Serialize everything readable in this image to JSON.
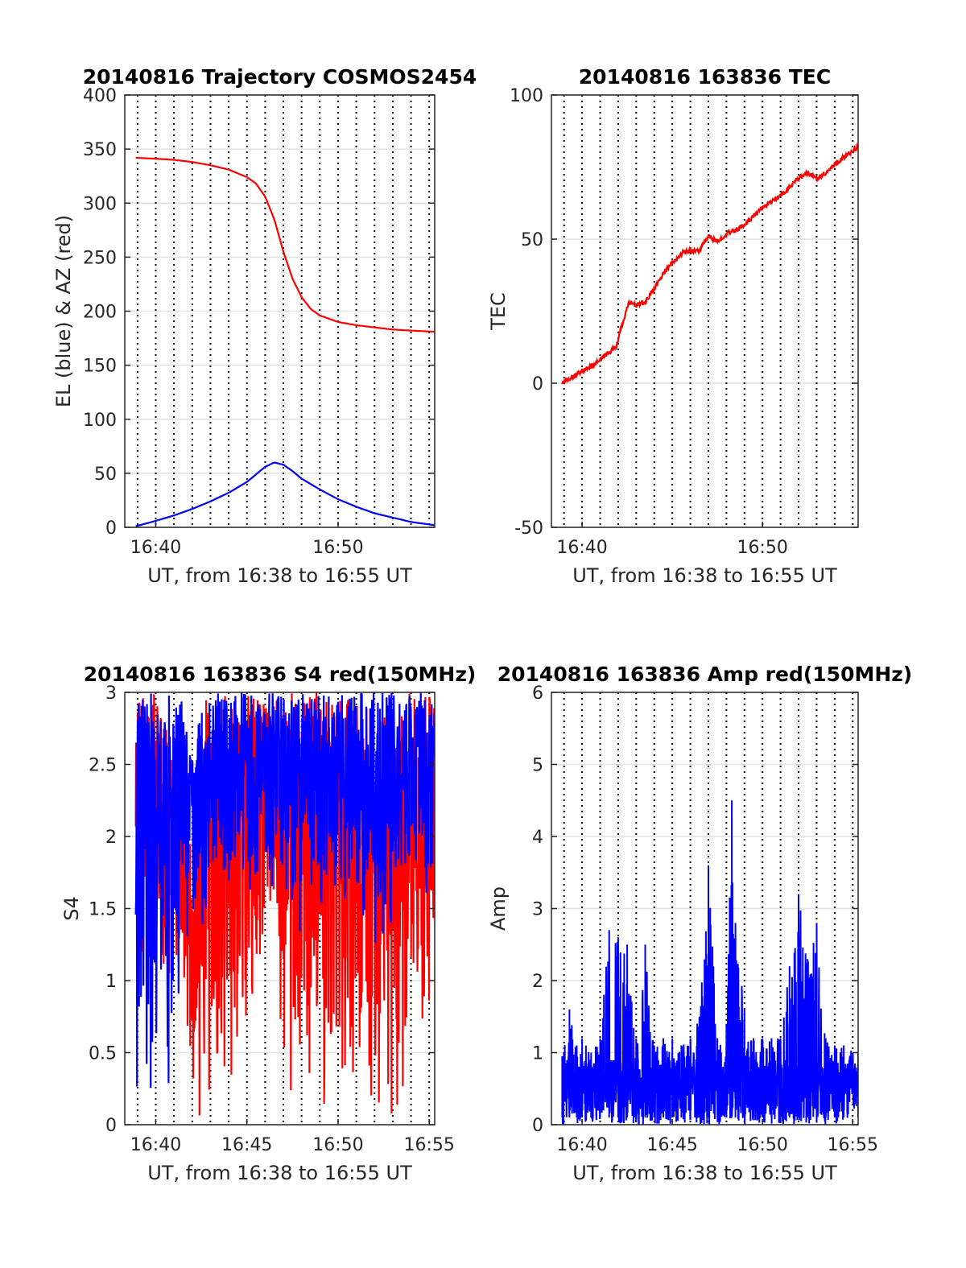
{
  "chart_data": [
    {
      "type": "line",
      "title": "20140816 Trajectory COSMOS2454",
      "xlabel": "UT, from 16:38 to 16:55 UT",
      "ylabel": "EL (blue) & AZ (red)",
      "xlim": [
        -1.7,
        15.3
      ],
      "ylim": [
        0,
        400
      ],
      "xticks": [
        0,
        10
      ],
      "xtick_labels": [
        "16:40",
        "16:50"
      ],
      "yticks": [
        0,
        50,
        100,
        150,
        200,
        250,
        300,
        350,
        400
      ],
      "grid": "dotted vertical lines every 1 minute, light horizontal lines at y ticks",
      "series": [
        {
          "color": "#ff0000",
          "x": [
            -1.1,
            0,
            1,
            2,
            3,
            4,
            5,
            5.5,
            6,
            6.5,
            7,
            7.5,
            8,
            8.5,
            9,
            10,
            11,
            12,
            13,
            14,
            15.3
          ],
          "y": [
            342,
            341,
            340,
            338,
            335,
            331,
            324,
            318,
            306,
            285,
            255,
            230,
            213,
            202,
            196,
            190,
            187,
            185,
            183,
            182,
            181
          ]
        },
        {
          "color": "#0000ff",
          "x": [
            -1.1,
            0,
            1,
            2,
            3,
            4,
            5,
            5.5,
            6,
            6.5,
            7,
            7.5,
            8,
            9,
            10,
            11,
            12,
            13,
            14,
            15.3
          ],
          "y": [
            1,
            6,
            11,
            17,
            24,
            32,
            42,
            49,
            56,
            60,
            58,
            52,
            45,
            35,
            26,
            19,
            13,
            9,
            5,
            2
          ]
        }
      ]
    },
    {
      "type": "line",
      "title": "20140816 163836 TEC",
      "xlabel": "UT, from 16:38 to 16:55 UT",
      "ylabel": "TEC",
      "xlim": [
        -1.7,
        15.3
      ],
      "ylim": [
        -50,
        100
      ],
      "xticks": [
        0,
        10
      ],
      "xtick_labels": [
        "16:40",
        "16:50"
      ],
      "yticks": [
        -50,
        0,
        50,
        100
      ],
      "grid": "dotted vertical lines every 1 minute, light horizontal lines at y ticks",
      "series": [
        {
          "color": "#ff0000",
          "noise": 0.8,
          "x": [
            -1.1,
            0,
            1,
            1.9,
            2.2,
            2.6,
            3,
            3.5,
            4,
            4.5,
            5,
            5.5,
            6,
            6.5,
            7,
            7.5,
            8,
            8.5,
            9,
            9.5,
            10,
            10.5,
            11,
            11.5,
            12,
            12.5,
            13,
            13.5,
            14,
            15.3
          ],
          "y": [
            0,
            4,
            8,
            13,
            20,
            28,
            27,
            28,
            33,
            38,
            42,
            45,
            46,
            46,
            51,
            49,
            52,
            53,
            55,
            58,
            61,
            63,
            65,
            68,
            71,
            73,
            71,
            73,
            76,
            82
          ]
        }
      ]
    },
    {
      "type": "line",
      "title": "20140816 163836 S4 red(150MHz)",
      "xlabel": "UT, from 16:38 to 16:55 UT",
      "ylabel": "S4",
      "xlim": [
        -1.7,
        15.3
      ],
      "ylim": [
        0,
        3
      ],
      "xticks": [
        0,
        5,
        10,
        15
      ],
      "xtick_labels": [
        "16:40",
        "16:45",
        "16:50",
        "16:55"
      ],
      "yticks": [
        0,
        0.5,
        1,
        1.5,
        2,
        2.5,
        3
      ],
      "grid": "dotted vertical lines every 1 minute, light horizontal lines at y ticks",
      "series": [
        {
          "color": "#ff0000",
          "x": [
            -1.1,
            -0.5,
            0,
            0.5,
            1,
            1.5,
            2,
            2.5,
            3,
            3.5,
            4,
            4.5,
            5,
            5.5,
            6,
            6.5,
            7,
            7.5,
            8,
            8.5,
            9,
            9.5,
            10,
            10.5,
            11,
            11.5,
            12,
            12.5,
            13,
            13.5,
            14,
            14.5,
            15,
            15.3
          ],
          "low": [
            1.2,
            0.8,
            1.4,
            1.0,
            0.9,
            1.0,
            0.0,
            0.0,
            0.0,
            0.0,
            0.1,
            0.5,
            0.6,
            1.0,
            1.3,
            1.4,
            0.0,
            0.0,
            0.0,
            0.0,
            0.0,
            0.0,
            0.0,
            0.0,
            0.0,
            0.0,
            0.0,
            0.0,
            0.0,
            0.0,
            0.0,
            0.4,
            0.8,
            1.4
          ],
          "high": [
            3.0,
            3.0,
            3.0,
            2.8,
            2.5,
            2.3,
            2.1,
            3.0,
            3.0,
            3.0,
            3.0,
            3.0,
            3.0,
            3.0,
            3.0,
            3.0,
            3.0,
            3.0,
            3.0,
            3.0,
            3.0,
            3.0,
            3.0,
            3.0,
            3.0,
            3.0,
            3.0,
            3.0,
            3.0,
            3.0,
            3.0,
            3.0,
            3.0,
            3.0
          ]
        },
        {
          "color": "#0000ff",
          "x": [
            -1.1,
            -0.5,
            0,
            0.5,
            1,
            1.5,
            2,
            2.5,
            3,
            3.5,
            4,
            4.5,
            5,
            5.5,
            6,
            6.5,
            7,
            7.5,
            8,
            8.5,
            9,
            9.5,
            10,
            10.5,
            11,
            11.5,
            12,
            12.5,
            13,
            13.5,
            14,
            14.5,
            15,
            15.3
          ],
          "low": [
            0.0,
            0.0,
            0.0,
            0.0,
            0.0,
            1.2,
            1.0,
            1.3,
            1.4,
            1.6,
            1.6,
            1.5,
            1.6,
            1.5,
            1.5,
            1.6,
            1.7,
            1.4,
            1.2,
            1.6,
            1.5,
            1.6,
            1.6,
            1.5,
            1.4,
            1.2,
            1.2,
            1.1,
            1.3,
            1.4,
            1.5,
            1.6,
            1.5,
            1.6
          ],
          "high": [
            3.0,
            3.0,
            3.0,
            3.0,
            3.0,
            3.0,
            2.6,
            2.9,
            3.0,
            3.0,
            3.0,
            3.0,
            3.0,
            3.0,
            3.0,
            3.0,
            3.0,
            3.0,
            3.0,
            3.0,
            3.0,
            3.0,
            3.0,
            3.0,
            3.0,
            3.0,
            3.0,
            3.0,
            3.0,
            3.0,
            3.0,
            3.0,
            3.0,
            3.0
          ]
        }
      ]
    },
    {
      "type": "line",
      "title": "20140816 163836 Amp red(150MHz)",
      "xlabel": "UT, from 16:38 to 16:55 UT",
      "ylabel": "Amp",
      "xlim": [
        -1.7,
        15.3
      ],
      "ylim": [
        0,
        6
      ],
      "xticks": [
        0,
        5,
        10,
        15
      ],
      "xtick_labels": [
        "16:40",
        "16:45",
        "16:50",
        "16:55"
      ],
      "yticks": [
        0,
        1,
        2,
        3,
        4,
        5,
        6
      ],
      "grid": "dotted vertical lines every 1 minute, light horizontal lines at y ticks",
      "series": [
        {
          "color": "#0000ff",
          "x": [
            -1.1,
            -0.7,
            -0.3,
            0,
            0.5,
            1,
            1.5,
            2,
            2.5,
            3,
            3.5,
            4,
            4.5,
            5,
            5.5,
            6,
            6.5,
            7,
            7.5,
            8,
            8.3,
            8.5,
            9,
            9.5,
            10,
            10.5,
            11,
            11.5,
            12,
            12.5,
            13,
            13.5,
            14,
            14.5,
            15.3
          ],
          "peak": [
            0.95,
            1.6,
            1.1,
            1.2,
            1.0,
            1.2,
            2.7,
            2.6,
            2.5,
            1.2,
            2.5,
            1.1,
            1.2,
            1.2,
            1.1,
            1.2,
            1.5,
            3.6,
            1.2,
            1.4,
            4.5,
            2.8,
            1.6,
            1.2,
            1.2,
            1.2,
            1.2,
            2.2,
            3.2,
            2.3,
            2.8,
            1.2,
            1.1,
            1.1,
            1.0
          ]
        }
      ]
    }
  ]
}
